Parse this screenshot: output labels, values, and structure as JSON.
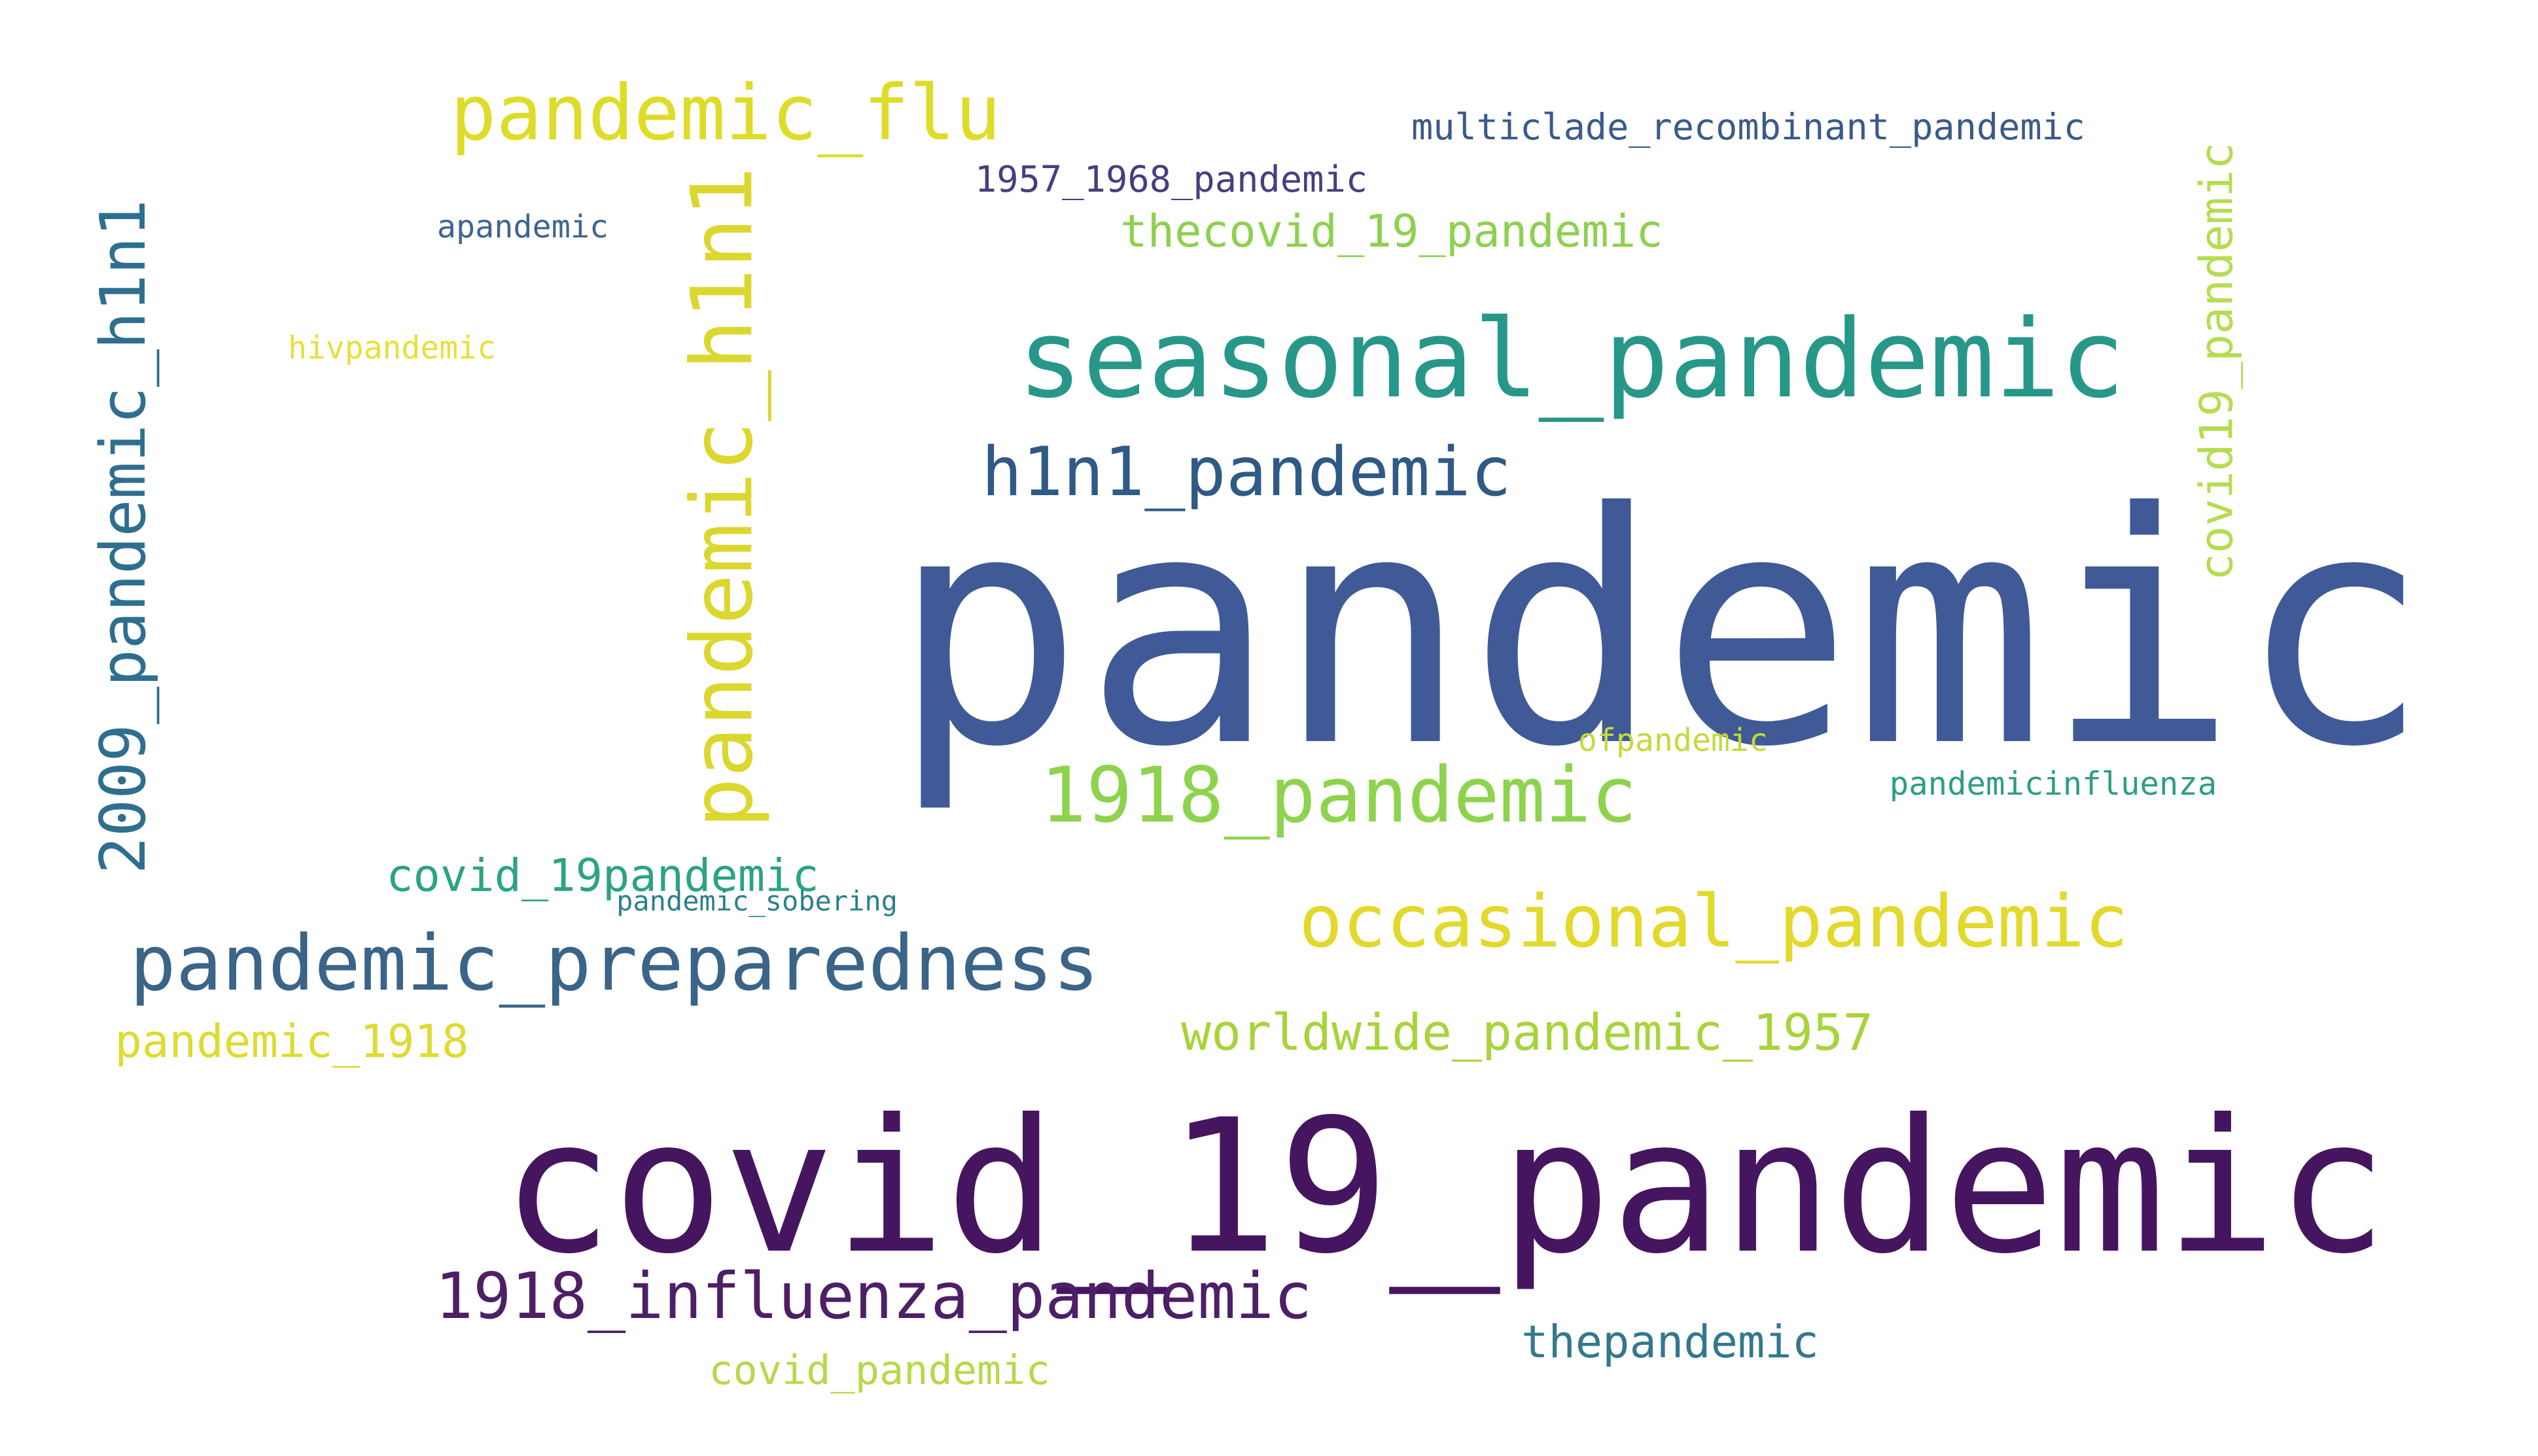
{
  "words": [
    {
      "id": "w-pandemic",
      "text": "pandemic",
      "color": "#3f5a97",
      "rotated": false
    },
    {
      "id": "w-covid_19_pandemic",
      "text": "covid_19_pandemic",
      "color": "#461560",
      "rotated": false
    },
    {
      "id": "w-seasonal_pandemic",
      "text": "seasonal_pandemic",
      "color": "#27978a",
      "rotated": false
    },
    {
      "id": "w-pandemic_h1n1",
      "text": "pandemic_h1n1",
      "color": "#dcd72f",
      "rotated": true
    },
    {
      "id": "w-pandemic_flu",
      "text": "pandemic_flu",
      "color": "#dedc29",
      "rotated": false
    },
    {
      "id": "w-2009_pandemic_h1n1",
      "text": "2009_pandemic_h1n1",
      "color": "#2e6f8f",
      "rotated": true
    },
    {
      "id": "w-h1n1_pandemic",
      "text": "h1n1_pandemic",
      "color": "#2f5a86",
      "rotated": false
    },
    {
      "id": "w-1918_pandemic",
      "text": "1918_pandemic",
      "color": "#8ed34d",
      "rotated": false
    },
    {
      "id": "w-occasional_pandemic",
      "text": "occasional_pandemic",
      "color": "#e2d92a",
      "rotated": false
    },
    {
      "id": "w-pandemic_preparedness",
      "text": "pandemic_preparedness",
      "color": "#3a6488",
      "rotated": false
    },
    {
      "id": "w-1918_influenza_pandemic",
      "text": "1918_influenza_pandemic",
      "color": "#4d1f66",
      "rotated": false
    },
    {
      "id": "w-worldwide_pandemic_1957",
      "text": "worldwide_pandemic_1957",
      "color": "#a8d43a",
      "rotated": false
    },
    {
      "id": "w-covid_19pandemic",
      "text": "covid_19pandemic",
      "color": "#2ba384",
      "rotated": false
    },
    {
      "id": "w-pandemic_1918",
      "text": "pandemic_1918",
      "color": "#dedb31",
      "rotated": false
    },
    {
      "id": "w-covid19_pandemic",
      "text": "covid19_pandemic",
      "color": "#b6dc50",
      "rotated": true
    },
    {
      "id": "w-thecovid_19_pandemic",
      "text": "thecovid_19_pandemic",
      "color": "#8ed04f",
      "rotated": false
    },
    {
      "id": "w-thepandemic",
      "text": "thepandemic",
      "color": "#33788d",
      "rotated": false
    },
    {
      "id": "w-covid_pandemic",
      "text": "covid_pandemic",
      "color": "#b6d94a",
      "rotated": false
    },
    {
      "id": "w-multiclade_recombinant_pandemic",
      "text": "multiclade_recombinant_pandemic",
      "color": "#3b5a8a",
      "rotated": false
    },
    {
      "id": "w-1957_1968_pandemic",
      "text": "1957_1968_pandemic",
      "color": "#463f7e",
      "rotated": false
    },
    {
      "id": "w-apandemic",
      "text": "apandemic",
      "color": "#3d6590",
      "rotated": false
    },
    {
      "id": "w-hivpandemic",
      "text": "hivpandemic",
      "color": "#e8df3a",
      "rotated": false
    },
    {
      "id": "w-pandemicinfluenza",
      "text": "pandemicinfluenza",
      "color": "#2c9e83",
      "rotated": false
    },
    {
      "id": "w-ofpandemic",
      "text": "ofpandemic",
      "color": "#c5d93b",
      "rotated": false
    },
    {
      "id": "w-pandemic_sobering",
      "text": "pandemic_sobering",
      "color": "#2a808c",
      "rotated": false
    }
  ]
}
